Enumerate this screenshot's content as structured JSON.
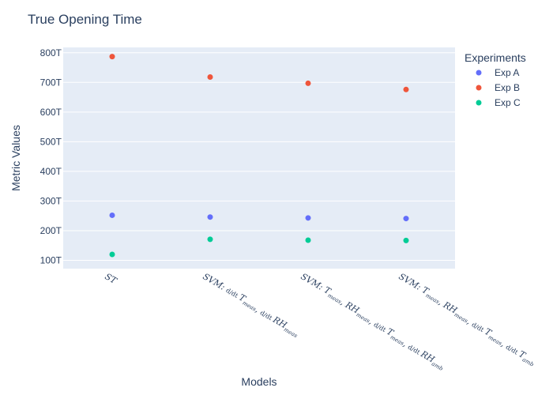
{
  "chart_data": {
    "type": "scatter",
    "title": "True Opening Time",
    "xlabel": "Models",
    "ylabel": "Metric Values",
    "categories": [
      "ST",
      "SVM: d/dt T_meas, d/dt RH_meas",
      "SVM: T_meas, RH_meas, d/dt T_meas, d/dt RH_amb",
      "SVM: T_meas, RH_meas, d/dt T_meas, d/dt T_amb"
    ],
    "yticks": [
      100,
      200,
      300,
      400,
      500,
      600,
      700,
      800
    ],
    "ytick_labels": [
      "100T",
      "200T",
      "300T",
      "400T",
      "500T",
      "600T",
      "700T",
      "800T"
    ],
    "ylim": [
      72,
      818
    ],
    "unit_suffix": "T",
    "grid": true,
    "legend_position": "top-right",
    "legend_title": "Experiments",
    "series": [
      {
        "name": "Exp A",
        "color": "#636efa",
        "values": [
          252,
          246,
          243,
          241
        ]
      },
      {
        "name": "Exp B",
        "color": "#ef553b",
        "values": [
          787,
          718,
          697,
          676
        ]
      },
      {
        "name": "Exp C",
        "color": "#00cc96",
        "values": [
          120,
          171,
          168,
          167
        ]
      }
    ]
  }
}
